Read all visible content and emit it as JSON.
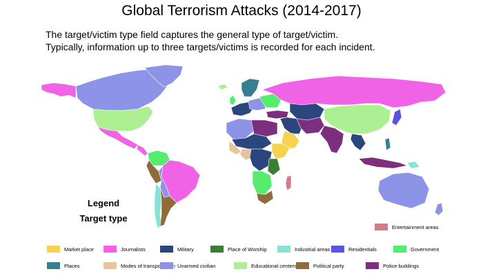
{
  "title": "Global Terrorism Attacks (2014-2017)",
  "subtitle_lines": [
    "The target/victim type field captures the general type of target/victim.",
    "Typically, information up to three targets/victims is recorded for each incident."
  ],
  "legend": {
    "heading": "Legend",
    "subheading": "Target type",
    "items": [
      {
        "label": "Entertainment areas",
        "color": "#d37d8b"
      },
      {
        "label": "Market place",
        "color": "#f5d34f"
      },
      {
        "label": "Journalists",
        "color": "#f063e6"
      },
      {
        "label": "Military",
        "color": "#2b467c"
      },
      {
        "label": "Place of Worship",
        "color": "#3a7d34"
      },
      {
        "label": "Industrial areas",
        "color": "#86e3d5"
      },
      {
        "label": "Residentials",
        "color": "#5a55e0"
      },
      {
        "label": "Government",
        "color": "#56ec6d"
      },
      {
        "label": "Places",
        "color": "#357f90"
      },
      {
        "label": "Modes of transportation",
        "color": "#e9c2a0"
      },
      {
        "label": "Unarmed civilian",
        "color": "#8d93e6"
      },
      {
        "label": "Educational centers",
        "color": "#adef93"
      },
      {
        "label": "Political party",
        "color": "#8e6d3a"
      },
      {
        "label": "Police buildings",
        "color": "#7b2f7e"
      }
    ]
  }
}
